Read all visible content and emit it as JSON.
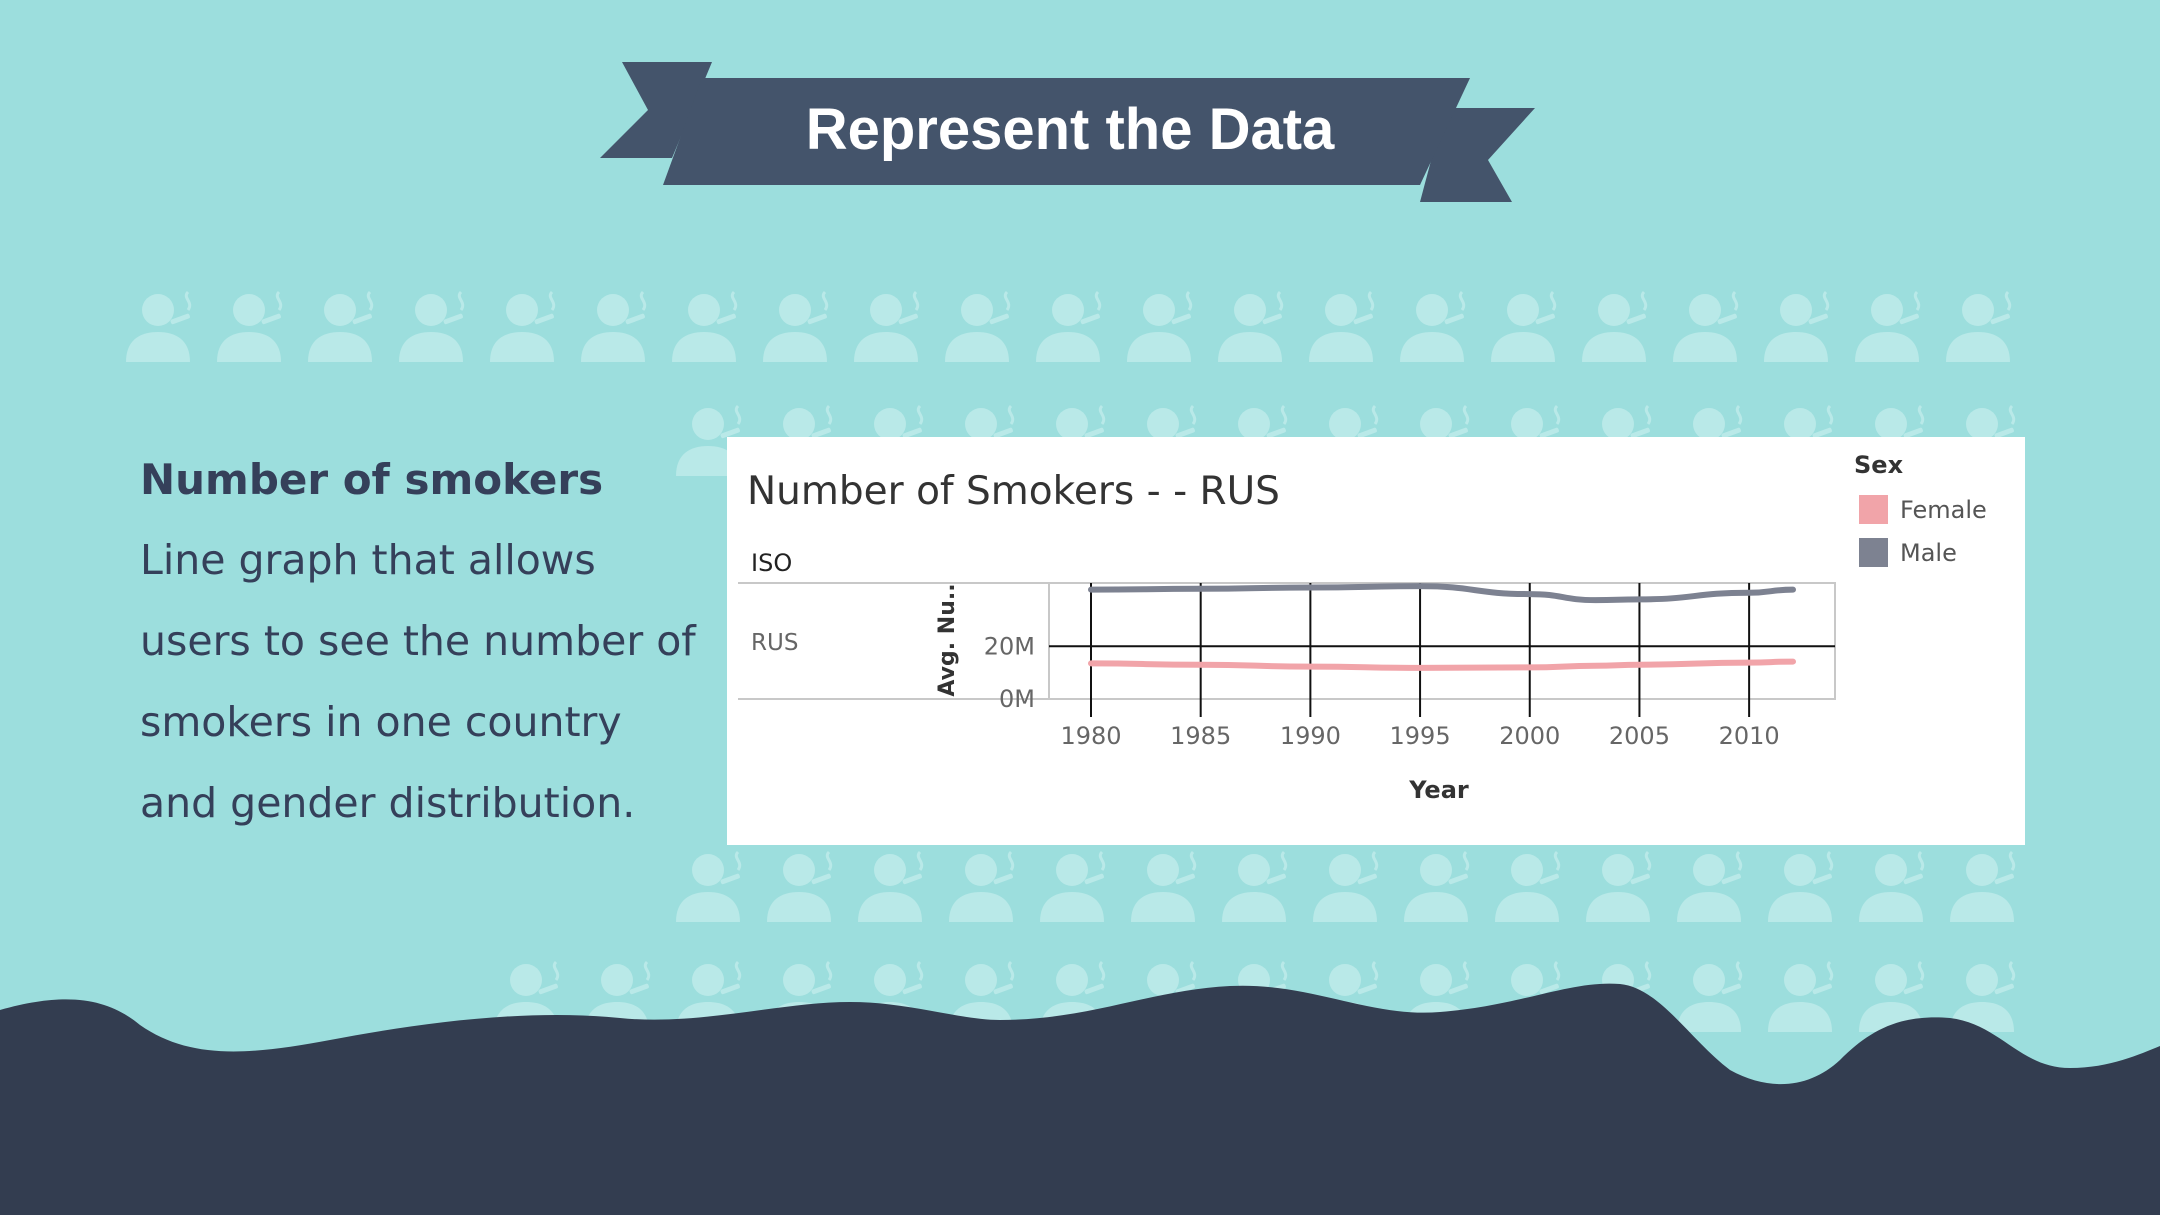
{
  "banner": {
    "title": "Represent the Data"
  },
  "description": {
    "heading": "Number of smokers",
    "body": "Line graph that allows users to see the number of smokers in one country and gender distribution."
  },
  "colors": {
    "background": "#9cdedd",
    "dark": "#333d50",
    "banner": "#44546b",
    "female": "#f1a4a9",
    "male": "#7d8291"
  },
  "decoration": {
    "icon": "smoker-person-icon"
  },
  "chart_data": {
    "type": "line",
    "title": "Number of Smokers -  - RUS",
    "row_header": "ISO",
    "row_label": "RUS",
    "xlabel": "Year",
    "ylabel": "Avg. Nu..",
    "x_ticks": [
      1980,
      1985,
      1990,
      1995,
      2000,
      2005,
      2010
    ],
    "y_ticks": [
      0,
      20000000
    ],
    "y_tick_labels": [
      "0M",
      "20M"
    ],
    "xlim": [
      1980,
      2012
    ],
    "ylim": [
      0,
      44000000
    ],
    "legend": {
      "title": "Sex",
      "position": "top-right"
    },
    "grid": true,
    "x": [
      1980,
      1985,
      1990,
      1995,
      2000,
      2003,
      2005,
      2010,
      2012
    ],
    "series": [
      {
        "name": "Female",
        "color": "#f1a4a9",
        "values": [
          13500000,
          13000000,
          12300000,
          11800000,
          12000000,
          12600000,
          13000000,
          13800000,
          14200000
        ]
      },
      {
        "name": "Male",
        "color": "#7d8291",
        "values": [
          41500000,
          41800000,
          42300000,
          42800000,
          39800000,
          37500000,
          37800000,
          40300000,
          41500000
        ]
      }
    ]
  }
}
